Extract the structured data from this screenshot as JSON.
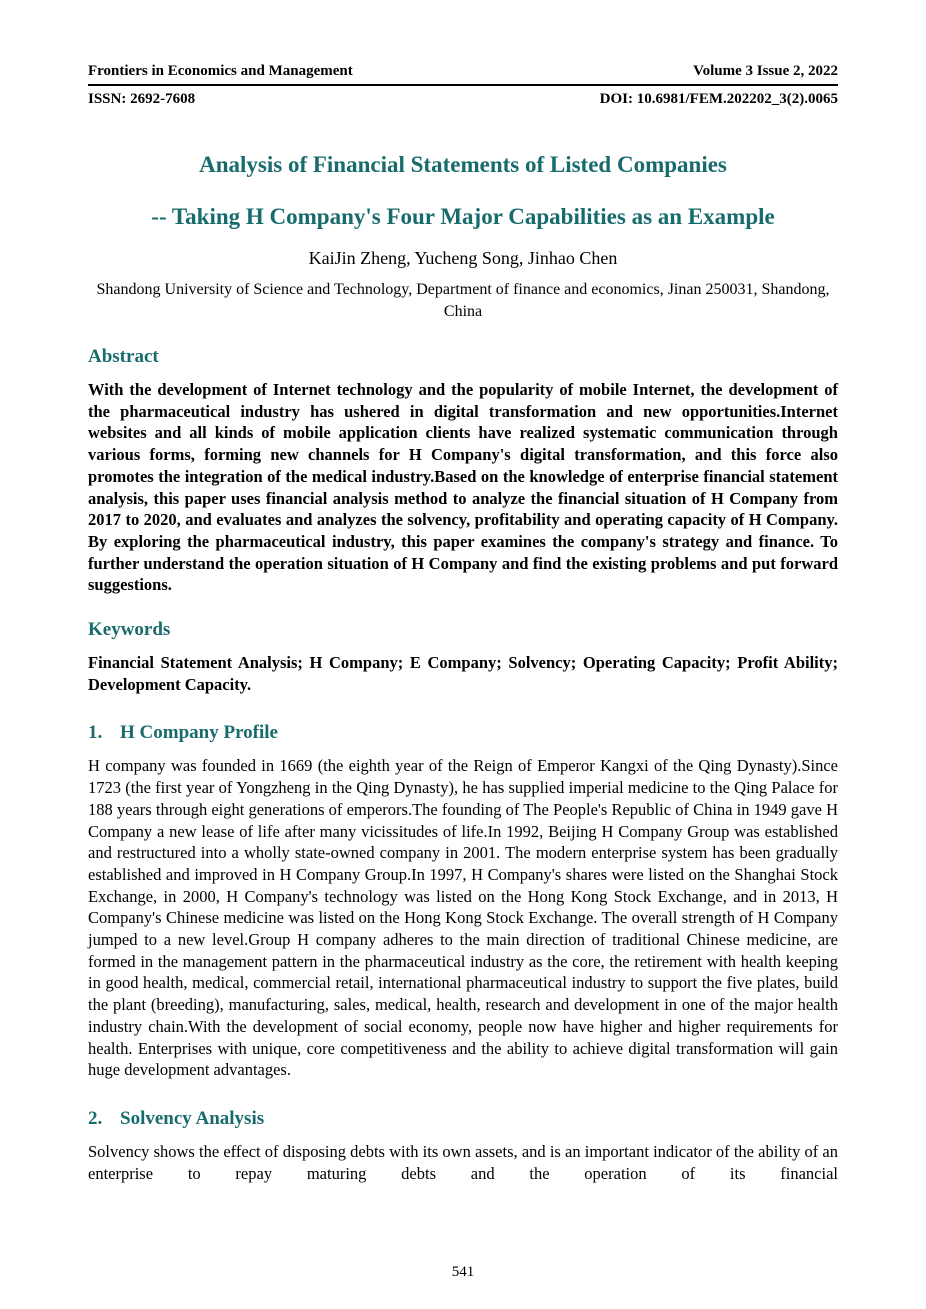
{
  "header": {
    "journal": "Frontiers in Economics and Management",
    "volume": "Volume 3 Issue 2, 2022",
    "issn": "ISSN: 2692-7608",
    "doi": "DOI: 10.6981/FEM.202202_3(2).0065"
  },
  "title": {
    "line1": "Analysis of Financial Statements of Listed Companies",
    "line2": "-- Taking H Company's Four Major Capabilities as an Example"
  },
  "authors": "KaiJin Zheng, Yucheng Song, Jinhao Chen",
  "affiliation": "Shandong University of Science and Technology, Department of finance and economics, Jinan 250031, Shandong, China",
  "abstract": {
    "heading": "Abstract",
    "body": "With the development of Internet technology and the popularity of mobile Internet, the development of the pharmaceutical industry has ushered in digital transformation and new opportunities.Internet websites and all kinds of mobile application clients have realized systematic communication through various forms, forming new channels for H Company's digital transformation, and this force also promotes the integration of the medical industry.Based on the knowledge of enterprise financial statement analysis, this paper uses financial analysis method to analyze the financial situation of H Company from 2017 to 2020, and evaluates and analyzes the solvency, profitability and operating capacity of H Company. By exploring the pharmaceutical industry, this paper examines the company's strategy and finance. To further understand the operation situation of H Company and find the existing problems and put forward suggestions."
  },
  "keywords": {
    "heading": "Keywords",
    "body": "Financial Statement Analysis; H Company; E Company; Solvency; Operating Capacity; Profit Ability; Development Capacity."
  },
  "sections": [
    {
      "number": "1.",
      "heading": "H Company Profile",
      "body": "H company was founded in 1669 (the eighth year of the Reign of Emperor Kangxi of the Qing Dynasty).Since 1723 (the first year of Yongzheng in the Qing Dynasty), he has supplied imperial medicine to the Qing Palace for 188 years through eight generations of emperors.The founding of The People's Republic of China in 1949 gave H Company a new lease of life after many vicissitudes of life.In 1992, Beijing H Company Group was established and restructured into a wholly state-owned company in 2001. The modern enterprise system has been gradually established and improved in H Company Group.In 1997, H Company's shares were listed on the Shanghai Stock Exchange, in 2000, H Company's technology was listed on the Hong Kong Stock Exchange, and in 2013, H Company's Chinese medicine was listed on the Hong Kong Stock Exchange. The overall strength of H Company jumped to a new level.Group H company adheres to the main direction of traditional Chinese medicine, are formed in the management pattern in the pharmaceutical industry as the core, the retirement with health keeping in good health, medical, commercial retail, international pharmaceutical industry to support the five plates, build the plant (breeding), manufacturing, sales, medical, health, research and development in one of the major health industry chain.With the development of social economy, people now have higher and higher requirements for health. Enterprises with unique, core competitiveness and the ability to achieve digital transformation will gain huge development advantages."
    },
    {
      "number": "2.",
      "heading": "Solvency Analysis",
      "body": "Solvency shows the effect of disposing debts with its own assets, and is an important indicator of the ability of an enterprise to repay maturing debts and the operation of its financial"
    }
  ],
  "footer": {
    "page_number": "541"
  },
  "colors": {
    "heading_teal": "#186b6d",
    "text_black": "#000000"
  }
}
